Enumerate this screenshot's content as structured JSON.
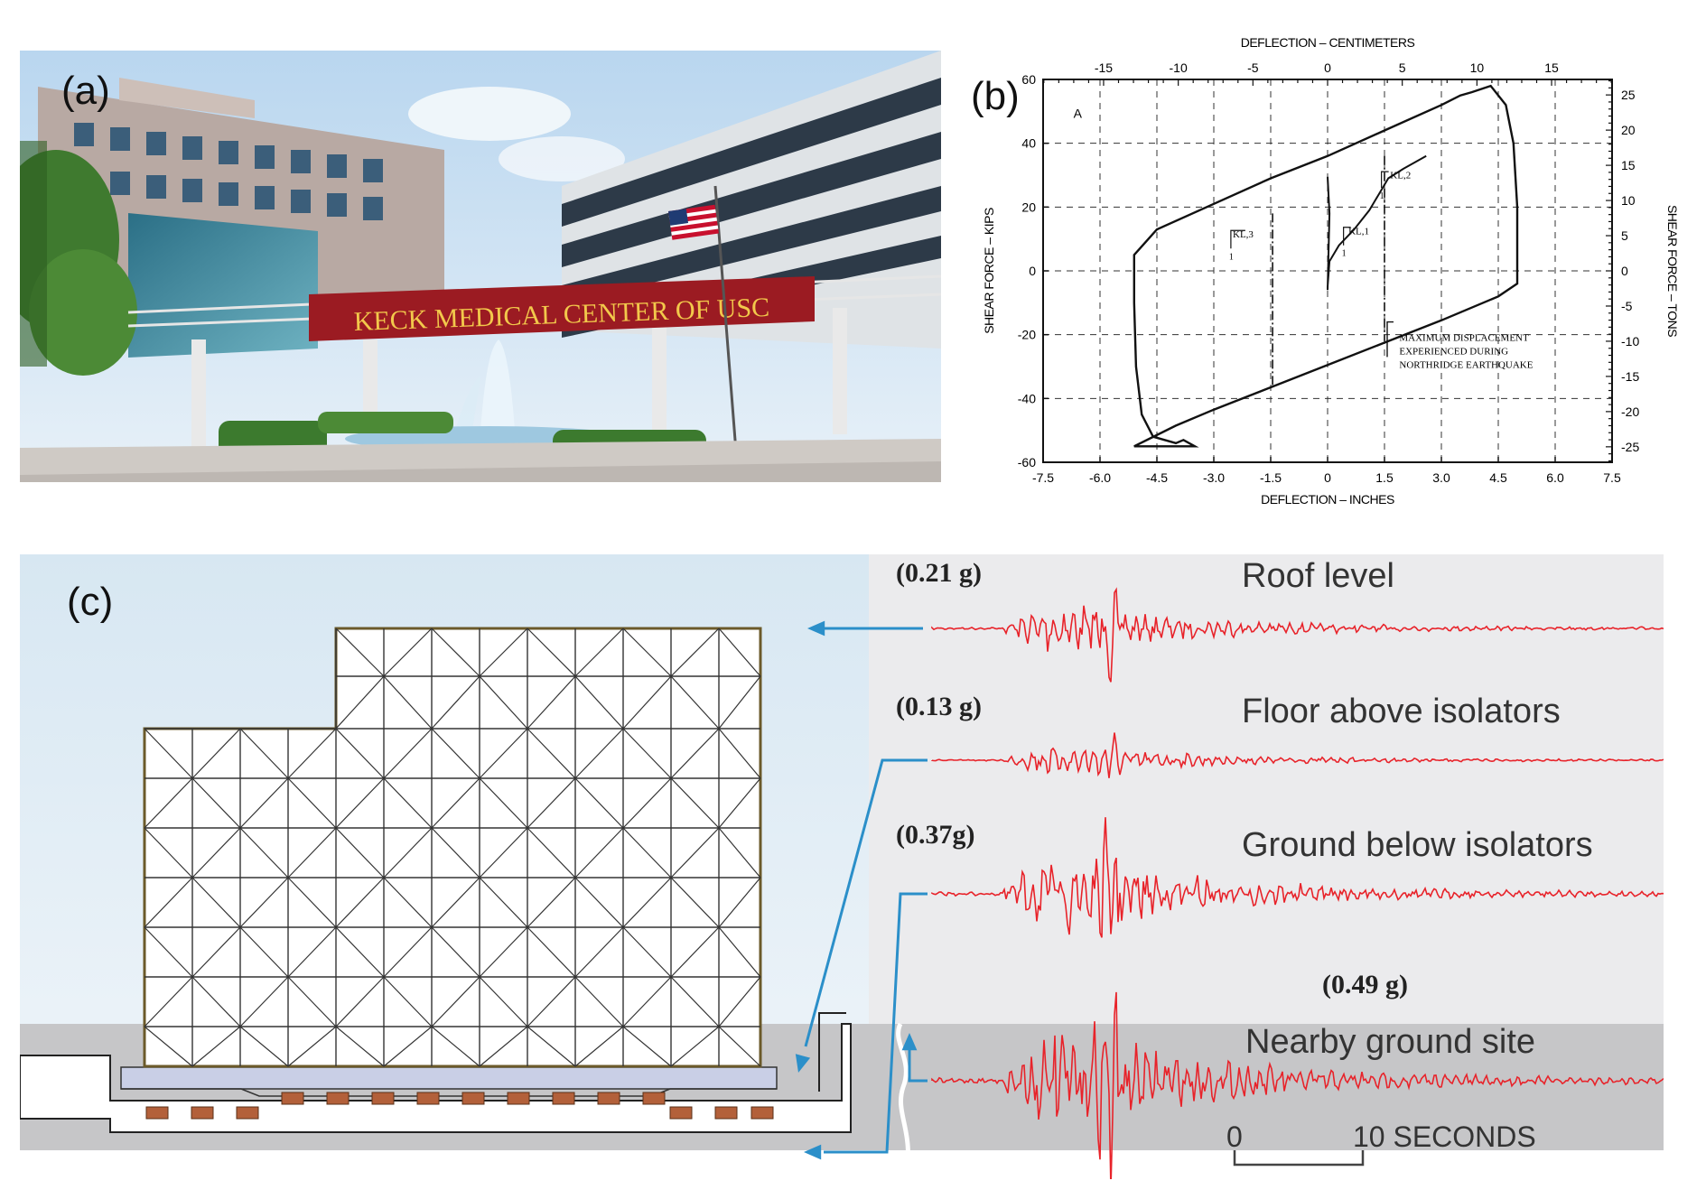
{
  "figure": {
    "panel_a": {
      "label": "(a)",
      "sign_text": "KECK MEDICAL CENTER OF USC",
      "colors": {
        "sign": "#9b1b22",
        "sign_text": "#f2c84b",
        "sky": "#cfe3f3"
      }
    },
    "panel_b": {
      "label": "(b)",
      "annotation": "MAXIMUM DISPLACEMENT EXPERIENCED DURING NORTHRIDGE EARTHQUAKE",
      "annotation_lines": [
        "MAXIMUM DISPLACEMENT",
        "EXPERIENCED DURING",
        "NORTHRIDGE EARTHQUAKE"
      ],
      "curve_label": "A",
      "k1_label": "KL,1",
      "k2_label": "KL,2",
      "k3_label": "KL,3",
      "slope_unit": "1"
    },
    "panel_c": {
      "label": "(c)",
      "traces": [
        {
          "name": "Roof level",
          "peak": "(0.21 g)",
          "amp": 0.21
        },
        {
          "name": "Floor above isolators",
          "peak": "(0.13 g)",
          "amp": 0.13
        },
        {
          "name": "Ground below isolators",
          "peak": "(0.37g)",
          "amp": 0.37
        },
        {
          "name": "Nearby ground site",
          "peak": "(0.49 g)",
          "amp": 0.49
        }
      ],
      "scale_start": "0",
      "scale_end": "10 SECONDS",
      "colors": {
        "trace": "#e8232a",
        "arrow": "#2b8fc9",
        "frame": "#6b5a2a",
        "isolator": "#b3603a"
      }
    }
  },
  "chart_data": {
    "type": "line",
    "title": "",
    "xlabel": "DEFLECTION – INCHES",
    "ylabel": "SHEAR FORCE – KIPS",
    "x2label": "DEFLECTION – CENTIMETERS",
    "y2label": "SHEAR FORCE – TONS",
    "xlim": [
      -7.5,
      7.5
    ],
    "ylim": [
      -60,
      60
    ],
    "x2lim": [
      -19.05,
      19.05
    ],
    "y2lim": [
      -27.2,
      27.2
    ],
    "x_ticks": [
      "-7.5",
      "-6.0",
      "-4.5",
      "-3.0",
      "-1.5",
      "0",
      "1.5",
      "3.0",
      "4.5",
      "6.0",
      "7.5"
    ],
    "y_ticks": [
      "-60",
      "-40",
      "-20",
      "0",
      "20",
      "40",
      "60"
    ],
    "x2_ticks": [
      "-15",
      "-10",
      "-5",
      "0",
      "5",
      "10",
      "15"
    ],
    "y2_ticks": [
      "-25",
      "-20",
      "-15",
      "-10",
      "-5",
      "0",
      "5",
      "10",
      "15",
      "20",
      "25"
    ],
    "grid": true,
    "max_displacement_x": 1.5,
    "series": [
      {
        "x": [
          -5.1,
          -4.0,
          -3.0,
          -1.5,
          0.0,
          1.5,
          3.0,
          4.5,
          5.0,
          5.0,
          4.9,
          4.7,
          4.3,
          3.8,
          3.5,
          3.0,
          1.5,
          0.0,
          -1.5,
          -3.0,
          -4.5,
          -5.1,
          -5.1,
          -5.05,
          -4.9,
          -4.6,
          -4.0,
          -3.8,
          -3.5
        ],
        "y": [
          -55,
          -48.5,
          -43.5,
          -36.5,
          -29.5,
          -22.5,
          -15.5,
          -8,
          -4,
          20,
          40,
          52,
          58,
          56,
          55,
          52,
          44,
          36,
          29,
          21,
          13,
          5,
          -10,
          -30,
          -45,
          -52,
          -54,
          -53,
          -55
        ]
      }
    ]
  }
}
